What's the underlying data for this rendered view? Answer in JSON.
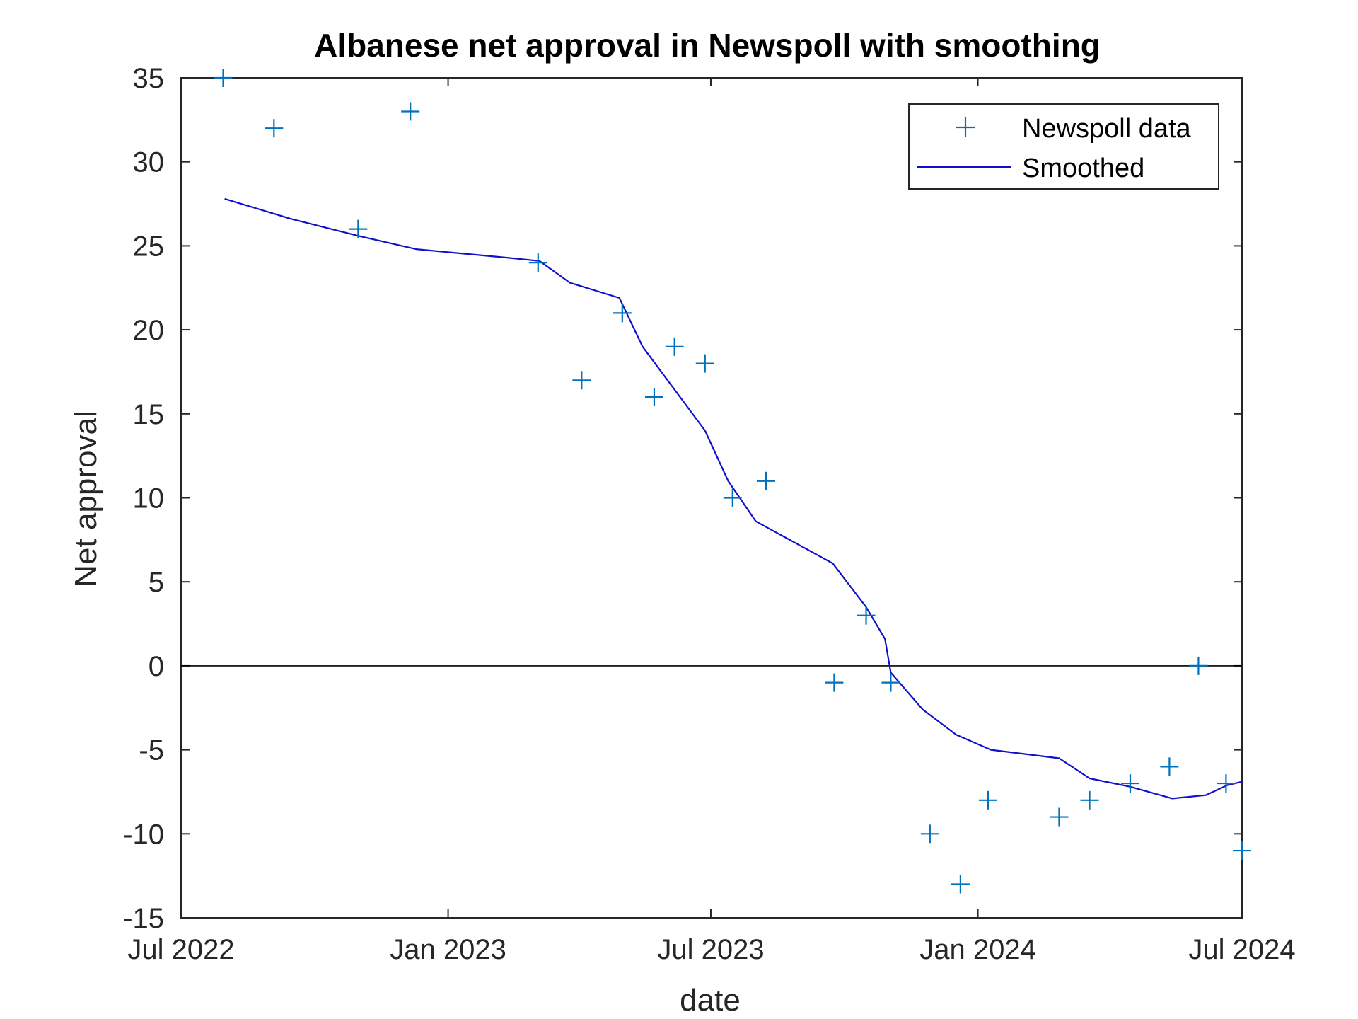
{
  "chart_data": {
    "type": "line",
    "title": "Albanese net approval in Newspoll with smoothing",
    "xlabel": "date",
    "ylabel": "Net approval",
    "x_is_date": true,
    "xlim": [
      "2022-07-01",
      "2024-07-01"
    ],
    "ylim": [
      -15,
      35
    ],
    "x_ticks": [
      {
        "date": "2022-07-01",
        "label": "Jul 2022"
      },
      {
        "date": "2023-01-01",
        "label": "Jan 2023"
      },
      {
        "date": "2023-07-01",
        "label": "Jul 2023"
      },
      {
        "date": "2024-01-01",
        "label": "Jan 2024"
      },
      {
        "date": "2024-07-01",
        "label": "Jul 2024"
      }
    ],
    "y_ticks": [
      35,
      30,
      25,
      20,
      15,
      10,
      5,
      0,
      -5,
      -10,
      -15
    ],
    "zero_line": true,
    "grid": false,
    "legend": {
      "placement": "top-right",
      "entries": [
        "Newspoll data",
        "Smoothed"
      ]
    },
    "series": [
      {
        "name": "Newspoll data",
        "type": "scatter",
        "marker": "plus",
        "color": "#0072BD",
        "points": [
          {
            "x": "2022-07-30",
            "y": 35
          },
          {
            "x": "2022-09-03",
            "y": 32
          },
          {
            "x": "2022-10-31",
            "y": 26
          },
          {
            "x": "2022-12-06",
            "y": 33
          },
          {
            "x": "2023-03-04",
            "y": 24
          },
          {
            "x": "2023-04-03",
            "y": 17
          },
          {
            "x": "2023-05-01",
            "y": 21
          },
          {
            "x": "2023-05-23",
            "y": 16
          },
          {
            "x": "2023-06-06",
            "y": 19
          },
          {
            "x": "2023-06-27",
            "y": 18
          },
          {
            "x": "2023-07-16",
            "y": 10
          },
          {
            "x": "2023-08-08",
            "y": 11
          },
          {
            "x": "2023-09-24",
            "y": -1
          },
          {
            "x": "2023-10-16",
            "y": 3
          },
          {
            "x": "2023-11-02",
            "y": -1
          },
          {
            "x": "2023-11-29",
            "y": -10
          },
          {
            "x": "2023-12-20",
            "y": -13
          },
          {
            "x": "2024-01-08",
            "y": -8
          },
          {
            "x": "2024-02-26",
            "y": -9
          },
          {
            "x": "2024-03-18",
            "y": -8
          },
          {
            "x": "2024-04-15",
            "y": -7
          },
          {
            "x": "2024-05-12",
            "y": -6
          },
          {
            "x": "2024-06-01",
            "y": 0
          },
          {
            "x": "2024-06-20",
            "y": -7
          },
          {
            "x": "2024-07-01",
            "y": -11
          }
        ]
      },
      {
        "name": "Smoothed",
        "type": "line",
        "color": "#1010CC",
        "points": [
          {
            "x": "2022-07-31",
            "y": 27.8
          },
          {
            "x": "2022-09-15",
            "y": 26.6
          },
          {
            "x": "2022-10-31",
            "y": 25.6
          },
          {
            "x": "2022-12-10",
            "y": 24.8
          },
          {
            "x": "2023-02-10",
            "y": 24.3
          },
          {
            "x": "2023-03-05",
            "y": 24.1
          },
          {
            "x": "2023-03-26",
            "y": 22.8
          },
          {
            "x": "2023-04-29",
            "y": 21.9
          },
          {
            "x": "2023-05-15",
            "y": 19.0
          },
          {
            "x": "2023-06-27",
            "y": 14.0
          },
          {
            "x": "2023-07-13",
            "y": 11.0
          },
          {
            "x": "2023-08-01",
            "y": 8.6
          },
          {
            "x": "2023-09-23",
            "y": 6.1
          },
          {
            "x": "2023-10-16",
            "y": 3.5
          },
          {
            "x": "2023-10-29",
            "y": 1.6
          },
          {
            "x": "2023-11-02",
            "y": -0.4
          },
          {
            "x": "2023-11-24",
            "y": -2.6
          },
          {
            "x": "2023-12-17",
            "y": -4.1
          },
          {
            "x": "2024-01-10",
            "y": -5.0
          },
          {
            "x": "2024-02-26",
            "y": -5.5
          },
          {
            "x": "2024-03-18",
            "y": -6.7
          },
          {
            "x": "2024-04-15",
            "y": -7.2
          },
          {
            "x": "2024-05-14",
            "y": -7.9
          },
          {
            "x": "2024-06-06",
            "y": -7.7
          },
          {
            "x": "2024-06-21",
            "y": -7.1
          },
          {
            "x": "2024-07-01",
            "y": -6.9
          }
        ]
      }
    ]
  }
}
